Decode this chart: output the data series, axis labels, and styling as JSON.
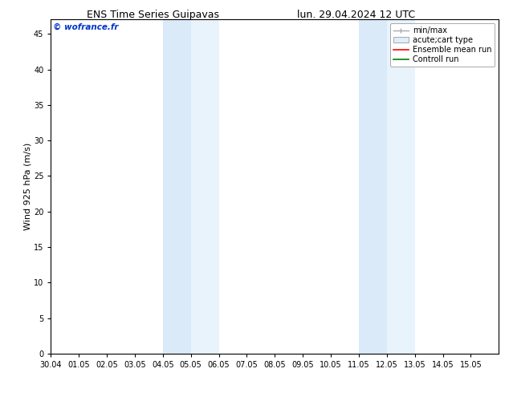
{
  "title_left": "ENS Time Series Guipavas",
  "title_right": "lun. 29.04.2024 12 UTC",
  "ylabel": "Wind 925 hPa (m/s)",
  "watermark": "© wofrance.fr",
  "xmin": 0,
  "xmax": 16,
  "ymin": 0,
  "ymax": 47,
  "yticks": [
    0,
    5,
    10,
    15,
    20,
    25,
    30,
    35,
    40,
    45
  ],
  "xtick_labels": [
    "30.04",
    "01.05",
    "02.05",
    "03.05",
    "04.05",
    "05.05",
    "06.05",
    "07.05",
    "08.05",
    "09.05",
    "10.05",
    "11.05",
    "12.05",
    "13.05",
    "14.05",
    "15.05"
  ],
  "shaded_regions": [
    {
      "xstart": 4,
      "xend": 5,
      "color": "#daeaf8"
    },
    {
      "xstart": 5,
      "xend": 6,
      "color": "#e8f3fc"
    },
    {
      "xstart": 11,
      "xend": 12,
      "color": "#daeaf8"
    },
    {
      "xstart": 12,
      "xend": 13,
      "color": "#e8f3fc"
    }
  ],
  "legend_entries": [
    {
      "label": "min/max",
      "color": "#aaaaaa",
      "linewidth": 1.0,
      "linestyle": "-",
      "type": "line_caps"
    },
    {
      "label": "acute;cart type",
      "color": "#ddeeff",
      "linewidth": 6,
      "linestyle": "-",
      "type": "patch"
    },
    {
      "label": "Ensemble mean run",
      "color": "red",
      "linewidth": 1.2,
      "linestyle": "-",
      "type": "line"
    },
    {
      "label": "Controll run",
      "color": "green",
      "linewidth": 1.2,
      "linestyle": "-",
      "type": "line"
    }
  ],
  "bg_color": "#ffffff",
  "plot_bg_color": "#ffffff",
  "spine_color": "#000000",
  "title_fontsize": 9,
  "tick_fontsize": 7,
  "ylabel_fontsize": 8,
  "watermark_color": "#0033cc",
  "watermark_fontsize": 7.5,
  "legend_fontsize": 7
}
